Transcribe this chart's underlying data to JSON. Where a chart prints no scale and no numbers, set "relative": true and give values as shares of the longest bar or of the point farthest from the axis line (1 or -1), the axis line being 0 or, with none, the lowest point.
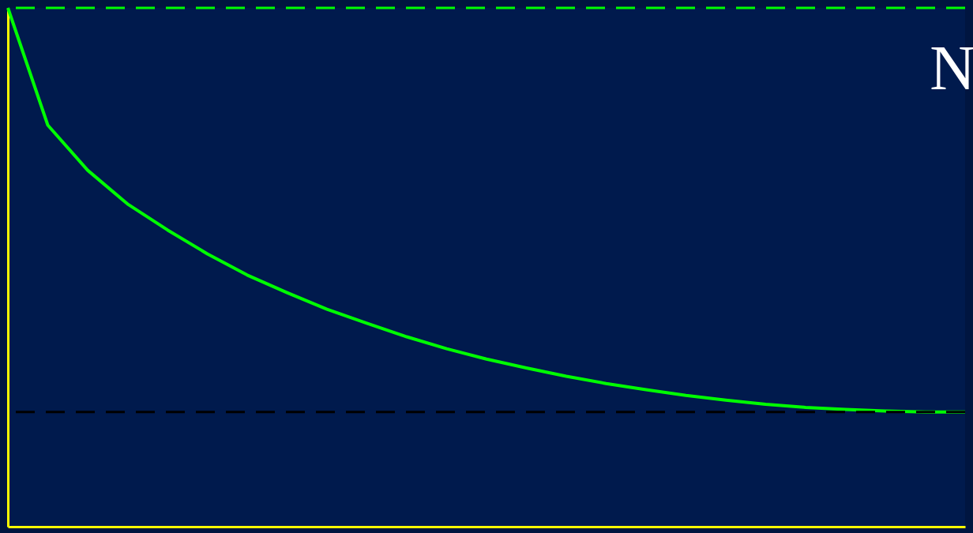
{
  "chart_data": {
    "type": "line",
    "relative": true,
    "tick_labels": false,
    "grid": false,
    "categories": [
      null,
      null,
      null,
      null,
      null,
      null,
      null,
      null,
      null,
      null,
      null,
      null,
      null,
      null,
      null,
      null,
      null,
      null,
      null,
      null,
      null,
      null,
      null,
      null,
      null
    ],
    "series": [
      {
        "color": "#00ff00",
        "values": [
          1.0,
          0.774,
          0.687,
          0.622,
          0.572,
          0.526,
          0.485,
          0.451,
          0.419,
          0.392,
          0.366,
          0.343,
          0.323,
          0.306,
          0.29,
          0.276,
          0.264,
          0.253,
          0.244,
          0.236,
          0.23,
          0.226,
          0.223,
          0.221,
          0.221
        ]
      }
    ],
    "ref_lines": [
      {
        "axis": "y",
        "value": 1.0,
        "color": "#00ff00",
        "line_style": "dashed"
      },
      {
        "axis": "y",
        "value": 0.221,
        "color": "#000000",
        "line_style": "dashed"
      }
    ],
    "annotations": [
      "N"
    ]
  }
}
